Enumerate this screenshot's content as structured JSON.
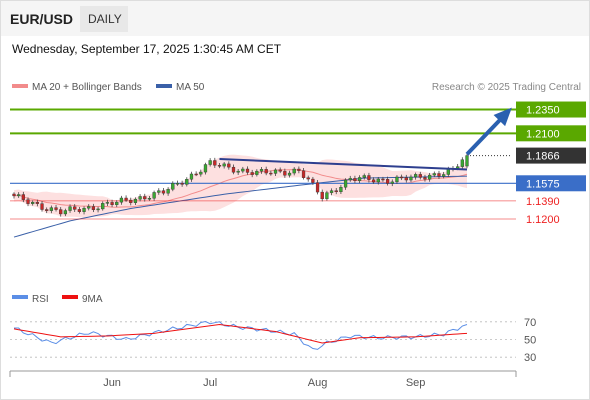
{
  "header": {
    "symbol": "EUR/USD",
    "timeframe": "DAILY",
    "datetime": "Wednesday, September 17, 2025 1:30:45 AM CET"
  },
  "source": "Research © 2025 Trading Central",
  "legend": {
    "ma20_bb": "MA 20 + Bollinger Bands",
    "ma50": "MA 50",
    "rsi": "RSI",
    "ma9": "9MA"
  },
  "colors": {
    "green_level": "#5aa800",
    "current": "#333333",
    "blue_level": "#3a6ec8",
    "red_level": "#ee2222",
    "ma20": "#f28b8b",
    "ma50": "#3a60a8",
    "bb_fill": "#fde0e0",
    "rsi": "#5b8ee6",
    "rsi_ma": "#ee1111",
    "arrow": "#2a60b0"
  },
  "chart_data": {
    "type": "candlestick",
    "price_range": [
      1.058,
      1.245
    ],
    "levels": [
      {
        "label": "1.2350",
        "value": 1.235,
        "kind": "resistance",
        "color": "#5aa800"
      },
      {
        "label": "1.2100",
        "value": 1.21,
        "kind": "resistance",
        "color": "#5aa800"
      },
      {
        "label": "1.1866",
        "value": 1.1866,
        "kind": "current",
        "color": "#333333"
      },
      {
        "label": "1.1575",
        "value": 1.1575,
        "kind": "pivot",
        "color": "#3a6ec8"
      },
      {
        "label": "1.1390",
        "value": 1.139,
        "kind": "support",
        "color": "#ee2222"
      },
      {
        "label": "1.1200",
        "value": 1.12,
        "kind": "support",
        "color": "#ee2222"
      }
    ],
    "x_labels": [
      {
        "label": "Jun",
        "index": 21
      },
      {
        "label": "Jul",
        "index": 42
      },
      {
        "label": "Aug",
        "index": 65
      },
      {
        "label": "Sep",
        "index": 86
      }
    ],
    "bars": 98,
    "key_prices": [
      {
        "index": 0,
        "price": 1.143
      },
      {
        "index": 10,
        "price": 1.127
      },
      {
        "index": 22,
        "price": 1.137
      },
      {
        "index": 32,
        "price": 1.148
      },
      {
        "index": 42,
        "price": 1.178
      },
      {
        "index": 52,
        "price": 1.168
      },
      {
        "index": 61,
        "price": 1.171
      },
      {
        "index": 66,
        "price": 1.143
      },
      {
        "index": 72,
        "price": 1.162
      },
      {
        "index": 80,
        "price": 1.161
      },
      {
        "index": 86,
        "price": 1.163
      },
      {
        "index": 94,
        "price": 1.171
      },
      {
        "index": 97,
        "price": 1.1866
      }
    ],
    "ma50_points": [
      {
        "index": 0,
        "price": 1.101
      },
      {
        "index": 12,
        "price": 1.118
      },
      {
        "index": 25,
        "price": 1.131
      },
      {
        "index": 45,
        "price": 1.146
      },
      {
        "index": 62,
        "price": 1.156
      },
      {
        "index": 75,
        "price": 1.163
      },
      {
        "index": 97,
        "price": 1.165
      }
    ],
    "trendline": {
      "from": {
        "index": 44,
        "price": 1.183
      },
      "to": {
        "index": 97,
        "price": 1.172
      }
    },
    "arrow": {
      "from": {
        "index": 97,
        "price": 1.188
      },
      "to": {
        "index": 106,
        "price": 1.234
      }
    },
    "rsi": {
      "levels": [
        70,
        50,
        30
      ],
      "points": [
        {
          "index": 0,
          "value": 63
        },
        {
          "index": 8,
          "value": 46
        },
        {
          "index": 16,
          "value": 58
        },
        {
          "index": 24,
          "value": 50
        },
        {
          "index": 32,
          "value": 60
        },
        {
          "index": 42,
          "value": 70
        },
        {
          "index": 48,
          "value": 64
        },
        {
          "index": 55,
          "value": 60
        },
        {
          "index": 60,
          "value": 56
        },
        {
          "index": 64,
          "value": 38
        },
        {
          "index": 67,
          "value": 46
        },
        {
          "index": 72,
          "value": 54
        },
        {
          "index": 78,
          "value": 52
        },
        {
          "index": 86,
          "value": 53
        },
        {
          "index": 92,
          "value": 56
        },
        {
          "index": 97,
          "value": 67
        }
      ],
      "ma_points": [
        {
          "index": 0,
          "value": 62
        },
        {
          "index": 10,
          "value": 53
        },
        {
          "index": 20,
          "value": 54
        },
        {
          "index": 30,
          "value": 57
        },
        {
          "index": 44,
          "value": 67
        },
        {
          "index": 56,
          "value": 59
        },
        {
          "index": 66,
          "value": 46
        },
        {
          "index": 74,
          "value": 52
        },
        {
          "index": 86,
          "value": 53
        },
        {
          "index": 97,
          "value": 57
        }
      ]
    }
  }
}
